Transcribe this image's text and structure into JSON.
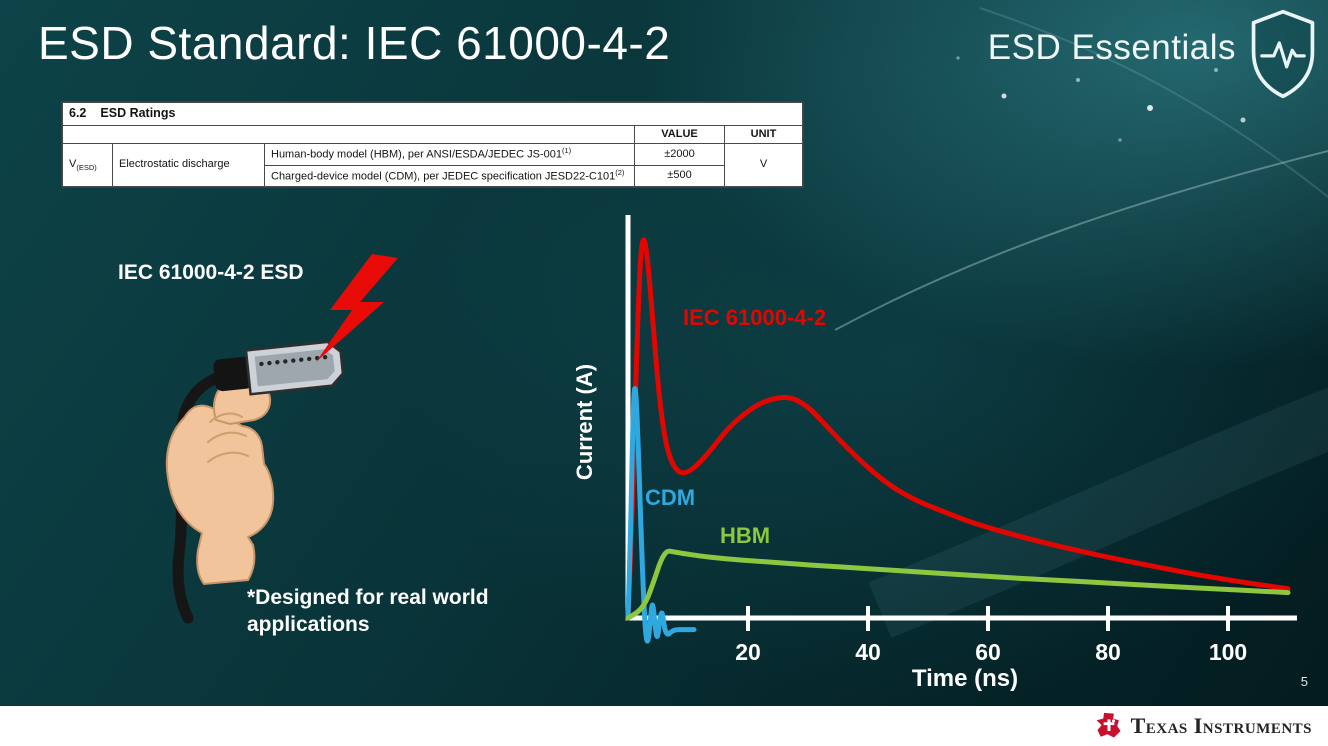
{
  "slide": {
    "title": "ESD Standard: IEC 61000-4-2",
    "series_brand": "ESD Essentials",
    "page_number": "5"
  },
  "icons": {
    "brand_shield": "shield-heartbeat-icon",
    "esd_event": "lightning-bolt-icon",
    "logo": "ti-bug-icon"
  },
  "ratings_table": {
    "section_number": "6.2",
    "section_title": "ESD Ratings",
    "value_header": "VALUE",
    "unit_header": "UNIT",
    "param_symbol": "V",
    "param_symbol_sub": "(ESD)",
    "param_name": "Electrostatic discharge",
    "rows": [
      {
        "description": "Human-body model (HBM), per ANSI/ESDA/JEDEC JS-001",
        "footnote_ref": "(1)",
        "value": "±2000"
      },
      {
        "description": "Charged-device model (CDM), per JEDEC specification JESD22-C101",
        "footnote_ref": "(2)",
        "value": "±500"
      }
    ],
    "unit": "V"
  },
  "illustration": {
    "label": "IEC 61000-4-2 ESD",
    "footnote": "*Designed for real world\napplications"
  },
  "chart_data": {
    "type": "line",
    "title": "",
    "xlabel": "Time (ns)",
    "ylabel": "Current (A)",
    "xlim": [
      0,
      112
    ],
    "ylim": [
      -0.1,
      1.05
    ],
    "x_ticks": [
      20,
      40,
      60,
      80,
      100
    ],
    "y_ticks": [],
    "grid": false,
    "axis_color": "#ffffff",
    "legend_position": "inline-labels",
    "series": [
      {
        "name": "IEC 61000-4-2",
        "color": "#e10600",
        "points": [
          [
            0,
            0
          ],
          [
            0.7,
            0.25
          ],
          [
            1.3,
            0.62
          ],
          [
            2,
            0.93
          ],
          [
            2.6,
            1.0
          ],
          [
            3.3,
            0.93
          ],
          [
            4.2,
            0.76
          ],
          [
            5.2,
            0.57
          ],
          [
            6.4,
            0.44
          ],
          [
            8,
            0.38
          ],
          [
            10,
            0.375
          ],
          [
            13,
            0.42
          ],
          [
            17,
            0.5
          ],
          [
            21,
            0.55
          ],
          [
            24,
            0.57
          ],
          [
            27,
            0.575
          ],
          [
            30,
            0.55
          ],
          [
            33,
            0.5
          ],
          [
            36,
            0.45
          ],
          [
            40,
            0.39
          ],
          [
            44,
            0.34
          ],
          [
            48,
            0.305
          ],
          [
            52,
            0.28
          ],
          [
            56,
            0.255
          ],
          [
            60,
            0.235
          ],
          [
            65,
            0.213
          ],
          [
            70,
            0.193
          ],
          [
            75,
            0.175
          ],
          [
            80,
            0.158
          ],
          [
            85,
            0.142
          ],
          [
            90,
            0.127
          ],
          [
            95,
            0.112
          ],
          [
            100,
            0.099
          ],
          [
            105,
            0.087
          ],
          [
            110,
            0.076
          ]
        ]
      },
      {
        "name": "CDM",
        "color": "#2fa8e0",
        "points": [
          [
            0,
            0
          ],
          [
            0.4,
            0.2
          ],
          [
            0.8,
            0.5
          ],
          [
            1.1,
            0.62
          ],
          [
            1.5,
            0.54
          ],
          [
            2,
            0.3
          ],
          [
            2.5,
            0.09
          ],
          [
            2.9,
            -0.04
          ],
          [
            3.3,
            -0.07
          ],
          [
            3.7,
            -0.01
          ],
          [
            4.1,
            0.05
          ],
          [
            4.5,
            -0.02
          ],
          [
            4.9,
            -0.06
          ],
          [
            5.3,
            0
          ],
          [
            5.7,
            0.02
          ],
          [
            6.1,
            -0.03
          ],
          [
            6.6,
            -0.045
          ],
          [
            7.2,
            -0.035
          ],
          [
            8,
            -0.03
          ],
          [
            9.5,
            -0.03
          ],
          [
            11,
            -0.03
          ]
        ]
      },
      {
        "name": "HBM",
        "color": "#8dc63f",
        "points": [
          [
            0,
            0
          ],
          [
            1.5,
            0.012
          ],
          [
            3,
            0.04
          ],
          [
            4.3,
            0.095
          ],
          [
            5.5,
            0.152
          ],
          [
            6.5,
            0.175
          ],
          [
            7.5,
            0.172
          ],
          [
            9,
            0.168
          ],
          [
            12,
            0.161
          ],
          [
            16,
            0.154
          ],
          [
            22,
            0.147
          ],
          [
            30,
            0.138
          ],
          [
            40,
            0.128
          ],
          [
            50,
            0.118
          ],
          [
            60,
            0.108
          ],
          [
            70,
            0.099
          ],
          [
            80,
            0.091
          ],
          [
            90,
            0.082
          ],
          [
            100,
            0.074
          ],
          [
            105,
            0.07
          ],
          [
            110,
            0.066
          ]
        ]
      }
    ]
  },
  "footer": {
    "brand": "Texas Instruments"
  }
}
